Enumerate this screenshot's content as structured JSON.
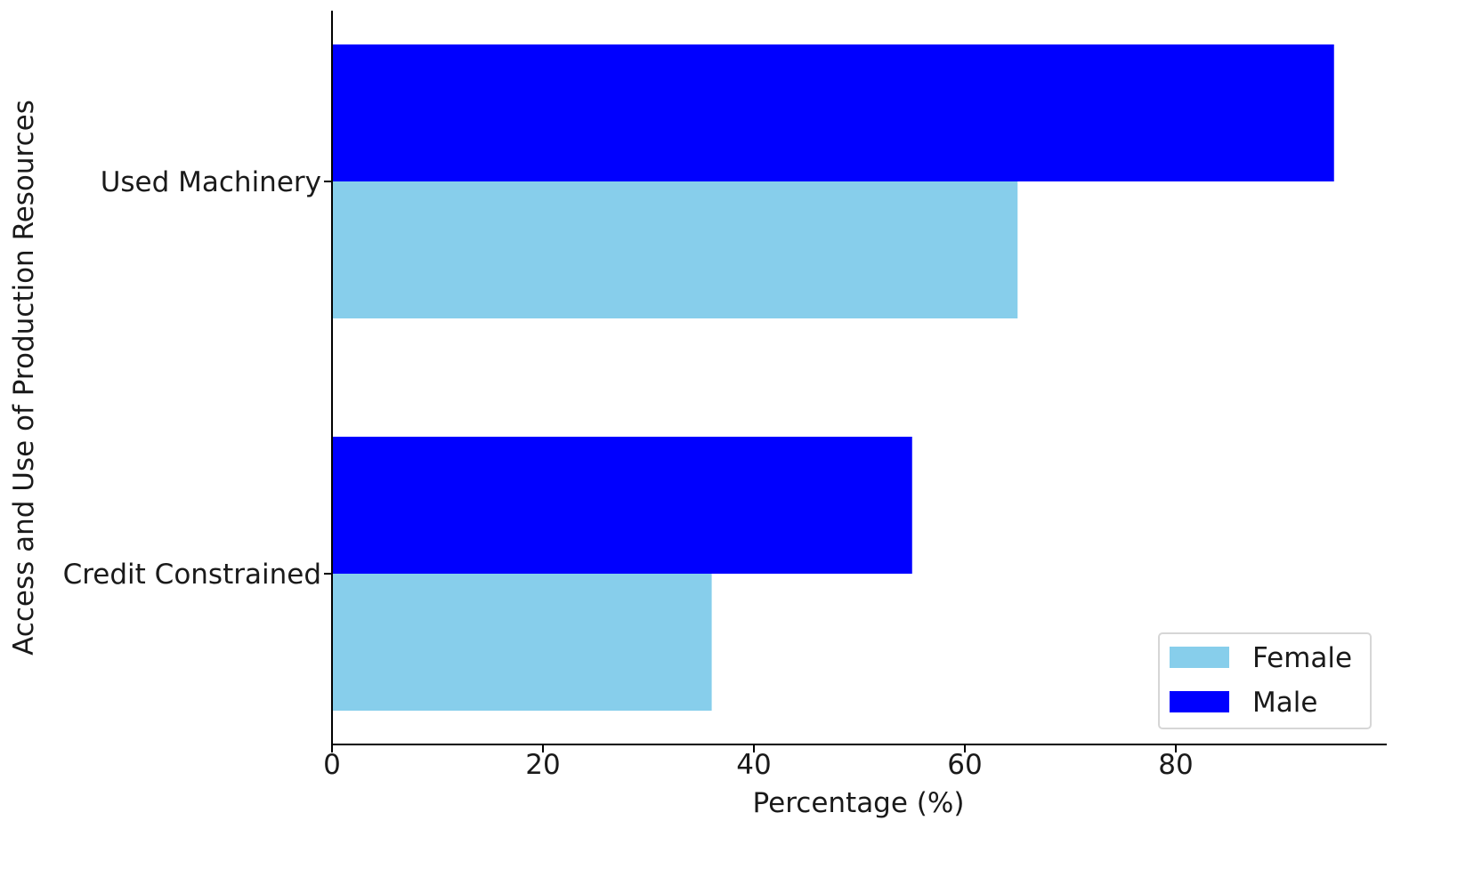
{
  "chart_data": {
    "type": "bar",
    "orientation": "horizontal",
    "title": "",
    "xlabel": "Percentage (%)",
    "ylabel": "Access and Use of Production Resources",
    "categories": [
      "Credit Constrained",
      "Used Machinery"
    ],
    "series": [
      {
        "name": "Female",
        "color": "#87ceeb",
        "values": [
          36,
          65
        ]
      },
      {
        "name": "Male",
        "color": "#0000ff",
        "values": [
          55,
          95
        ]
      }
    ],
    "xlim": [
      0,
      100
    ],
    "xticks": [
      0,
      20,
      40,
      60,
      80
    ],
    "grid": false,
    "legend_position": "lower-right"
  }
}
